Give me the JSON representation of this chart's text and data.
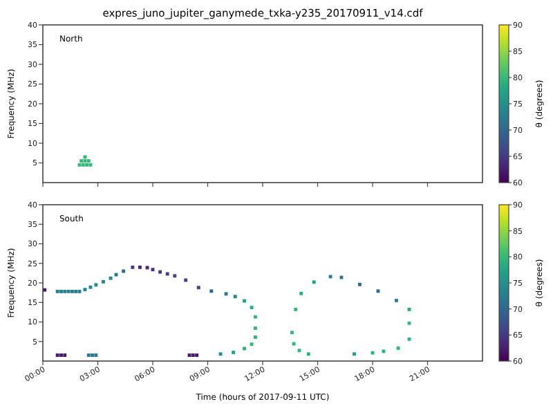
{
  "chart_data": [
    {
      "type": "scatter",
      "title": "expres_juno_jupiter_ganymede_txka-y235_20170911_v14.cdf",
      "ylabel": "Frequency (MHz)",
      "annotations": [
        "North"
      ],
      "xlim": [
        0,
        24
      ],
      "xticks": [
        {
          "value": 0,
          "label": null
        },
        {
          "value": 3,
          "label": null
        },
        {
          "value": 6,
          "label": null
        },
        {
          "value": 9,
          "label": null
        },
        {
          "value": 12,
          "label": null
        },
        {
          "value": 15,
          "label": null
        },
        {
          "value": 18,
          "label": null
        },
        {
          "value": 21,
          "label": null
        }
      ],
      "ylim": [
        0,
        40
      ],
      "yticks": [
        5,
        10,
        15,
        20,
        25,
        30,
        35,
        40
      ],
      "tick_labels": "y",
      "marker": "square",
      "clabel": "θ (degrees)",
      "clim": [
        60,
        90
      ],
      "cticks": [
        60,
        65,
        70,
        75,
        80,
        85,
        90
      ],
      "series": [
        {
          "x": [
            2.0,
            2.2,
            2.4,
            2.6,
            2.1,
            2.3,
            2.5,
            2.3
          ],
          "values": [
            4.5,
            4.5,
            4.5,
            4.5,
            5.5,
            5.5,
            5.5,
            6.5
          ],
          "cvalues": [
            80,
            80,
            80,
            80,
            80,
            80,
            80,
            80
          ]
        }
      ]
    },
    {
      "type": "scatter",
      "xlabel": "Time (hours of 2017-09-11 UTC)",
      "ylabel": "Frequency (MHz)",
      "annotations": [
        "South"
      ],
      "xlim": [
        0,
        24
      ],
      "xticks": [
        {
          "value": 0,
          "label": "00:00"
        },
        {
          "value": 3,
          "label": "03:00"
        },
        {
          "value": 6,
          "label": "06:00"
        },
        {
          "value": 9,
          "label": "09:00"
        },
        {
          "value": 12,
          "label": "12:00"
        },
        {
          "value": 15,
          "label": "15:00"
        },
        {
          "value": 18,
          "label": "18:00"
        },
        {
          "value": 21,
          "label": "21:00"
        }
      ],
      "ylim": [
        0,
        40
      ],
      "yticks": [
        5,
        10,
        15,
        20,
        25,
        30,
        35,
        40
      ],
      "marker": "square",
      "clabel": "θ (degrees)",
      "clim": [
        60,
        90
      ],
      "cticks": [
        60,
        65,
        70,
        75,
        80,
        85,
        90
      ],
      "series": [
        {
          "x": [
            0.1,
            0.8,
            1.0,
            1.2,
            1.4,
            1.6,
            1.8,
            2.0,
            2.3,
            2.6,
            2.9,
            3.3,
            3.7,
            4.0,
            4.4,
            4.9,
            5.3,
            5.7,
            6.0,
            6.4,
            6.8,
            7.2,
            7.8,
            8.5,
            9.2,
            10.0,
            10.5,
            11.0,
            11.4,
            11.6,
            11.6,
            11.6,
            11.4,
            11.0,
            10.4,
            9.7,
            0.8,
            1.0,
            1.2,
            2.5,
            2.7,
            2.9,
            8.0,
            8.2,
            8.4,
            13.6,
            13.8,
            14.1,
            14.8,
            15.7,
            16.3,
            17.3,
            18.3,
            19.3,
            20.0,
            20.0,
            20.0,
            19.4,
            18.6,
            18.0,
            17.0,
            14.5,
            14.0,
            13.7
          ],
          "values": [
            18.2,
            17.8,
            17.8,
            17.8,
            17.8,
            17.8,
            17.8,
            17.8,
            18.3,
            18.9,
            19.5,
            20.3,
            21.2,
            22.1,
            23,
            24,
            24,
            23.9,
            23.4,
            22.8,
            22.3,
            21.8,
            20.7,
            18.8,
            17.9,
            17.2,
            16.5,
            15.4,
            13.7,
            11.3,
            8.4,
            6.1,
            4.3,
            3.2,
            2.2,
            1.8,
            1.5,
            1.5,
            1.5,
            1.5,
            1.5,
            1.5,
            1.5,
            1.5,
            1.5,
            7.3,
            13.2,
            17.3,
            20.2,
            21.6,
            21.4,
            19.6,
            17.9,
            15.5,
            13.2,
            9.7,
            5.6,
            3.3,
            2.5,
            2.1,
            1.8,
            1.8,
            2.7,
            4.4
          ],
          "cvalues": [
            62,
            73,
            73,
            73,
            73,
            73,
            73,
            73,
            74,
            74,
            74,
            74,
            73,
            72,
            70,
            65,
            63,
            63,
            64,
            65,
            65,
            66,
            66,
            66,
            70,
            72,
            74,
            77,
            79,
            80,
            80,
            80,
            80,
            79,
            77,
            75,
            62,
            62,
            62,
            72,
            72,
            72,
            62,
            62,
            62,
            80,
            80,
            79,
            77,
            73,
            72,
            70,
            70,
            74,
            79,
            80,
            80,
            80,
            79,
            79,
            77,
            79,
            80,
            80
          ]
        }
      ]
    }
  ]
}
